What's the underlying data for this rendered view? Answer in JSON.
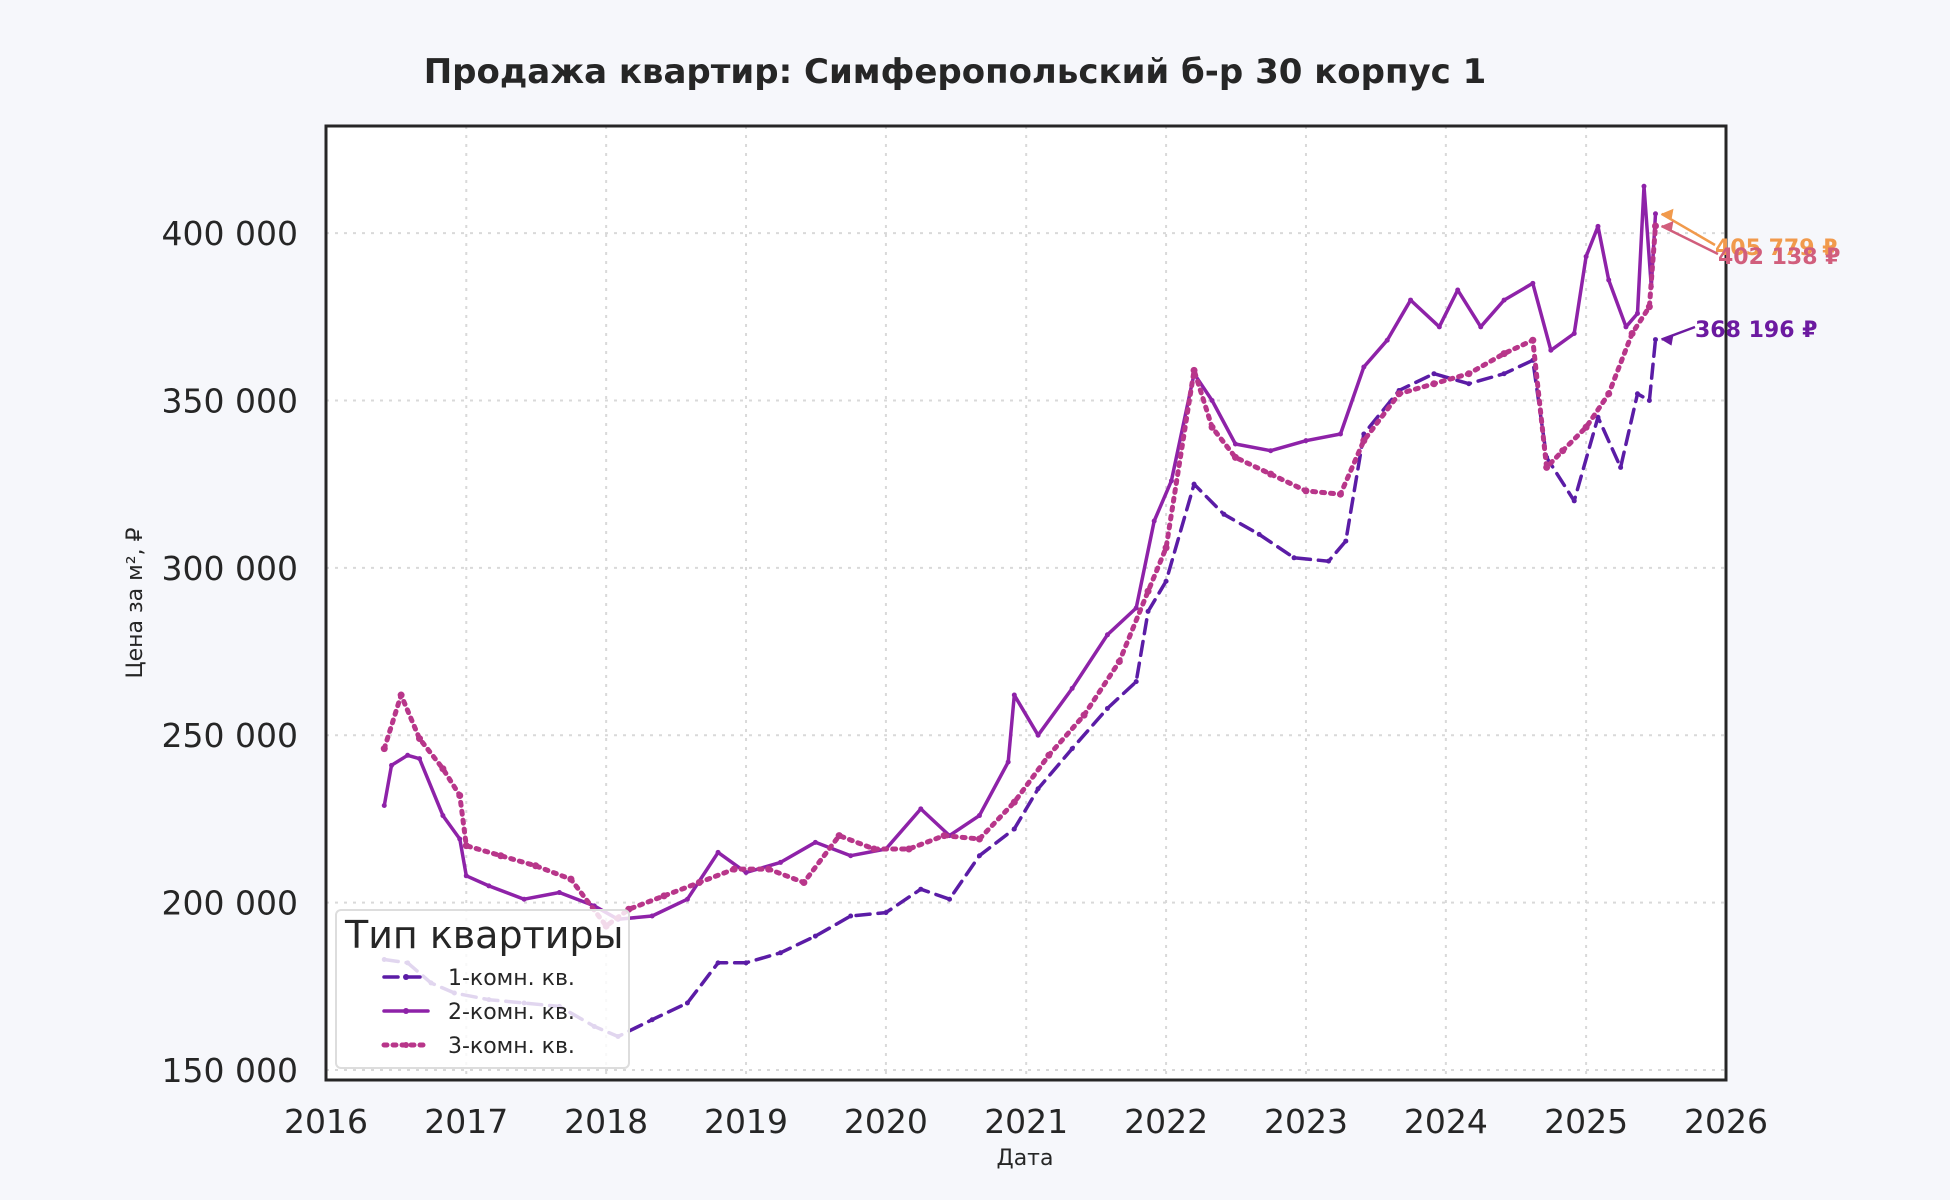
{
  "chart_data": {
    "type": "line",
    "title": "Продажа квартир: Симферопольский б-р 30 корпус 1",
    "xlabel": "Дата",
    "ylabel": "Цена за м², ₽",
    "xlim": [
      "2016-01-01",
      "2026-01-01"
    ],
    "ylim": [
      147000,
      432000
    ],
    "xticks": [
      "2016",
      "2017",
      "2018",
      "2019",
      "2020",
      "2021",
      "2022",
      "2023",
      "2024",
      "2025",
      "2026"
    ],
    "yticks": [
      150000,
      200000,
      250000,
      300000,
      350000,
      400000
    ],
    "ytick_labels": [
      "150 000",
      "200 000",
      "250 000",
      "300 000",
      "350 000",
      "400 000"
    ],
    "grid": true,
    "legend": {
      "title": "Тип квартиры",
      "placement": "bottom-left"
    },
    "series": [
      {
        "name": "1-комн. кв.",
        "color": "#5b1ca6",
        "style": "dashed",
        "points": [
          [
            "2016-06-01",
            183000
          ],
          [
            "2016-08-01",
            182000
          ],
          [
            "2016-10-01",
            176000
          ],
          [
            "2016-12-01",
            173000
          ],
          [
            "2017-03-01",
            171000
          ],
          [
            "2017-06-01",
            170000
          ],
          [
            "2017-09-01",
            169000
          ],
          [
            "2017-12-01",
            163000
          ],
          [
            "2018-02-01",
            160000
          ],
          [
            "2018-05-01",
            165000
          ],
          [
            "2018-08-01",
            170000
          ],
          [
            "2018-10-20",
            182000
          ],
          [
            "2019-01-01",
            182000
          ],
          [
            "2019-04-01",
            185000
          ],
          [
            "2019-07-01",
            190000
          ],
          [
            "2019-10-01",
            196000
          ],
          [
            "2020-01-01",
            197000
          ],
          [
            "2020-04-01",
            204000
          ],
          [
            "2020-06-15",
            201000
          ],
          [
            "2020-09-01",
            214000
          ],
          [
            "2020-12-01",
            222000
          ],
          [
            "2021-02-01",
            234000
          ],
          [
            "2021-05-01",
            246000
          ],
          [
            "2021-08-01",
            258000
          ],
          [
            "2021-10-15",
            266000
          ],
          [
            "2021-11-15",
            287000
          ],
          [
            "2022-01-01",
            296000
          ],
          [
            "2022-03-15",
            325000
          ],
          [
            "2022-06-01",
            316000
          ],
          [
            "2022-09-01",
            310000
          ],
          [
            "2022-12-01",
            303000
          ],
          [
            "2023-03-01",
            302000
          ],
          [
            "2023-04-15",
            308000
          ],
          [
            "2023-06-01",
            340000
          ],
          [
            "2023-09-01",
            353000
          ],
          [
            "2023-12-01",
            358000
          ],
          [
            "2024-03-01",
            355000
          ],
          [
            "2024-06-01",
            358000
          ],
          [
            "2024-08-15",
            362000
          ],
          [
            "2024-09-20",
            333000
          ],
          [
            "2024-12-01",
            320000
          ],
          [
            "2025-02-01",
            345000
          ],
          [
            "2025-04-01",
            330000
          ],
          [
            "2025-05-15",
            352000
          ],
          [
            "2025-06-15",
            350000
          ],
          [
            "2025-07-01",
            368196
          ]
        ]
      },
      {
        "name": "2-комн. кв.",
        "color": "#8e22a8",
        "style": "solid",
        "points": [
          [
            "2016-06-01",
            229000
          ],
          [
            "2016-06-20",
            241000
          ],
          [
            "2016-08-01",
            244000
          ],
          [
            "2016-09-01",
            243000
          ],
          [
            "2016-11-01",
            226000
          ],
          [
            "2016-12-15",
            219000
          ],
          [
            "2017-01-01",
            208000
          ],
          [
            "2017-03-01",
            205000
          ],
          [
            "2017-06-01",
            201000
          ],
          [
            "2017-09-01",
            203000
          ],
          [
            "2017-12-01",
            199000
          ],
          [
            "2018-02-01",
            195000
          ],
          [
            "2018-05-01",
            196000
          ],
          [
            "2018-08-01",
            201000
          ],
          [
            "2018-10-20",
            215000
          ],
          [
            "2019-01-01",
            209000
          ],
          [
            "2019-04-01",
            212000
          ],
          [
            "2019-07-01",
            218000
          ],
          [
            "2019-10-01",
            214000
          ],
          [
            "2020-01-01",
            216000
          ],
          [
            "2020-04-01",
            228000
          ],
          [
            "2020-06-15",
            220000
          ],
          [
            "2020-09-01",
            226000
          ],
          [
            "2020-11-15",
            242000
          ],
          [
            "2020-12-01",
            262000
          ],
          [
            "2021-02-01",
            250000
          ],
          [
            "2021-05-01",
            264000
          ],
          [
            "2021-08-01",
            280000
          ],
          [
            "2021-10-15",
            288000
          ],
          [
            "2021-12-01",
            314000
          ],
          [
            "2022-01-15",
            326000
          ],
          [
            "2022-03-15",
            358000
          ],
          [
            "2022-05-01",
            350000
          ],
          [
            "2022-07-01",
            337000
          ],
          [
            "2022-10-01",
            335000
          ],
          [
            "2023-01-01",
            338000
          ],
          [
            "2023-04-01",
            340000
          ],
          [
            "2023-06-01",
            360000
          ],
          [
            "2023-08-01",
            368000
          ],
          [
            "2023-10-01",
            380000
          ],
          [
            "2023-12-15",
            372000
          ],
          [
            "2024-02-01",
            383000
          ],
          [
            "2024-04-01",
            372000
          ],
          [
            "2024-06-01",
            380000
          ],
          [
            "2024-08-15",
            385000
          ],
          [
            "2024-10-01",
            365000
          ],
          [
            "2024-12-01",
            370000
          ],
          [
            "2025-01-01",
            393000
          ],
          [
            "2025-02-01",
            402000
          ],
          [
            "2025-03-01",
            386000
          ],
          [
            "2025-04-15",
            372000
          ],
          [
            "2025-05-15",
            376000
          ],
          [
            "2025-06-01",
            414000
          ],
          [
            "2025-06-20",
            384000
          ],
          [
            "2025-07-01",
            405779
          ]
        ]
      },
      {
        "name": "3-комн. кв.",
        "color": "#b8368a",
        "style": "dotted",
        "points": [
          [
            "2016-06-01",
            246000
          ],
          [
            "2016-07-15",
            262000
          ],
          [
            "2016-09-01",
            249000
          ],
          [
            "2016-11-01",
            240000
          ],
          [
            "2016-12-15",
            232000
          ],
          [
            "2017-01-01",
            217000
          ],
          [
            "2017-04-01",
            214000
          ],
          [
            "2017-07-01",
            211000
          ],
          [
            "2017-10-01",
            207000
          ],
          [
            "2018-01-01",
            193000
          ],
          [
            "2018-03-01",
            198000
          ],
          [
            "2018-06-01",
            202000
          ],
          [
            "2018-09-01",
            206000
          ],
          [
            "2018-12-01",
            210000
          ],
          [
            "2019-03-01",
            210000
          ],
          [
            "2019-06-01",
            206000
          ],
          [
            "2019-09-01",
            220000
          ],
          [
            "2019-12-01",
            216000
          ],
          [
            "2020-03-01",
            216000
          ],
          [
            "2020-06-01",
            220000
          ],
          [
            "2020-09-01",
            219000
          ],
          [
            "2020-12-01",
            230000
          ],
          [
            "2021-03-01",
            244000
          ],
          [
            "2021-06-01",
            256000
          ],
          [
            "2021-09-01",
            272000
          ],
          [
            "2021-11-15",
            293000
          ],
          [
            "2022-01-01",
            306000
          ],
          [
            "2022-03-15",
            359000
          ],
          [
            "2022-05-01",
            342000
          ],
          [
            "2022-07-01",
            333000
          ],
          [
            "2022-10-01",
            328000
          ],
          [
            "2023-01-01",
            323000
          ],
          [
            "2023-04-01",
            322000
          ],
          [
            "2023-06-01",
            338000
          ],
          [
            "2023-09-01",
            352000
          ],
          [
            "2023-12-01",
            355000
          ],
          [
            "2024-03-01",
            358000
          ],
          [
            "2024-06-01",
            364000
          ],
          [
            "2024-08-15",
            368000
          ],
          [
            "2024-09-20",
            330000
          ],
          [
            "2024-11-01",
            335000
          ],
          [
            "2025-01-01",
            342000
          ],
          [
            "2025-03-01",
            352000
          ],
          [
            "2025-05-01",
            370000
          ],
          [
            "2025-06-15",
            378000
          ],
          [
            "2025-07-01",
            402138
          ]
        ]
      }
    ],
    "annotations": [
      {
        "text": "405 779 ₽",
        "series": 1,
        "color": "#f19a4c",
        "date": "2025-07-01",
        "value": 405779
      },
      {
        "text": "402 138 ₽",
        "series": 2,
        "color": "#d15e7c",
        "date": "2025-07-01",
        "value": 402138
      },
      {
        "text": "368 196 ₽",
        "series": 0,
        "color": "#6c1aa0",
        "date": "2025-07-01",
        "value": 368196
      }
    ]
  }
}
